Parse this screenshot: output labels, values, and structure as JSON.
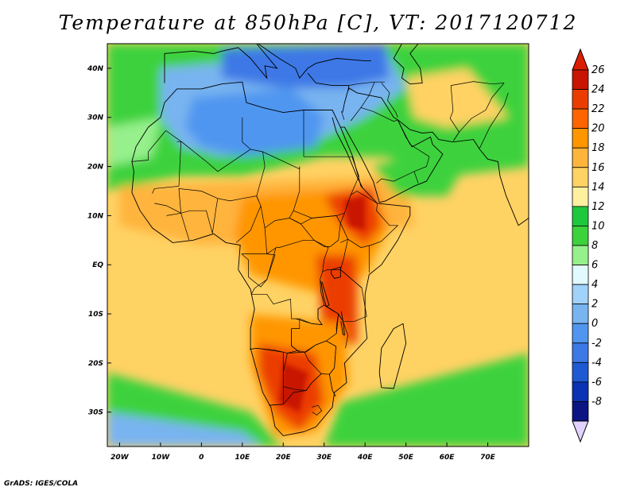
{
  "title": "Temperature at 850hPa [C], VT: 2017120712",
  "credit": "GrADS: IGES/COLA",
  "map": {
    "lon_range": [
      -23,
      80
    ],
    "lat_range": [
      -37,
      45
    ],
    "lat_ticks": [
      {
        "value": 40,
        "label": "40N"
      },
      {
        "value": 30,
        "label": "30N"
      },
      {
        "value": 20,
        "label": "20N"
      },
      {
        "value": 10,
        "label": "10N"
      },
      {
        "value": 0,
        "label": "EQ"
      },
      {
        "value": -10,
        "label": "10S"
      },
      {
        "value": -20,
        "label": "20S"
      },
      {
        "value": -30,
        "label": "30S"
      }
    ],
    "lon_ticks": [
      {
        "value": -20,
        "label": "20W"
      },
      {
        "value": -10,
        "label": "10W"
      },
      {
        "value": 0,
        "label": "0"
      },
      {
        "value": 10,
        "label": "10E"
      },
      {
        "value": 20,
        "label": "20E"
      },
      {
        "value": 30,
        "label": "30E"
      },
      {
        "value": 40,
        "label": "40E"
      },
      {
        "value": 50,
        "label": "50E"
      },
      {
        "value": 60,
        "label": "60E"
      },
      {
        "value": 70,
        "label": "70E"
      }
    ]
  },
  "colorbar": {
    "levels": [
      "26",
      "24",
      "22",
      "20",
      "18",
      "16",
      "14",
      "12",
      "10",
      "8",
      "6",
      "4",
      "2",
      "0",
      "-2",
      "-4",
      "-6",
      "-8"
    ],
    "colors": [
      "#c81400",
      "#eb3c00",
      "#ff6400",
      "#ff9600",
      "#ffb43c",
      "#ffd264",
      "#fff0a0",
      "#1ec83c",
      "#3cd23c",
      "#96f08c",
      "#e1faff",
      "#a0d2fa",
      "#78b4f0",
      "#5096f0",
      "#3c78e6",
      "#1e5ad2",
      "#0a32b4",
      "#0a1482"
    ],
    "top_color": "#dc1e00",
    "bottom_color": "#e1d2ff"
  },
  "palette": {
    "ocean_warm": "#ffd264",
    "ocean_mid": "#ffb43c",
    "ocean_cool": "#3cd23c",
    "ocean_cold": "#78b4f0",
    "land_hot": "#eb3c00",
    "land_warm": "#ff9600",
    "desert_cool": "#5096f0",
    "border": "#000000"
  }
}
